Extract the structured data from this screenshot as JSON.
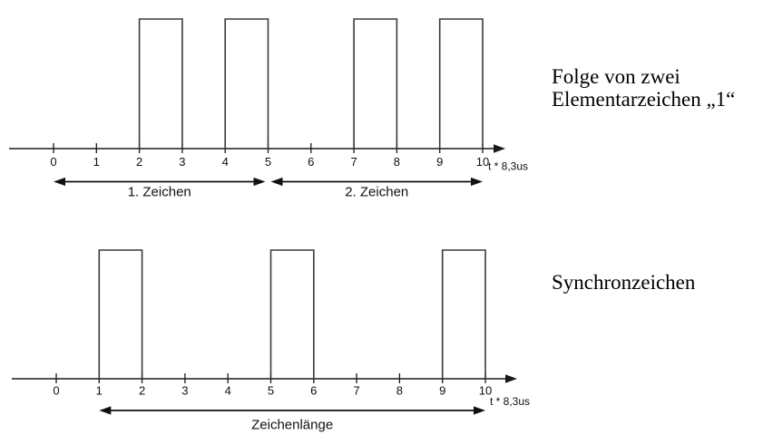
{
  "colors": {
    "background": "#ffffff",
    "axis_line": "#1a1a1a",
    "pulse_line": "#3a3a3a",
    "arrow_line": "#111111",
    "text": "#000000"
  },
  "diagrams": [
    {
      "name": "folge-von-zwei-elementarzeichen",
      "caption": [
        "Folge von zwei",
        "Elementarzeichen „1“"
      ],
      "axis_unit_label": "t * 8,3us",
      "tick_labels": [
        "0",
        "1",
        "2",
        "3",
        "4",
        "5",
        "6",
        "7",
        "8",
        "9",
        "10"
      ],
      "pulses": [
        {
          "from": 2,
          "to": 3
        },
        {
          "from": 4,
          "to": 5
        },
        {
          "from": 7,
          "to": 8
        },
        {
          "from": 9,
          "to": 10
        }
      ],
      "spans": [
        {
          "from": 0,
          "to": 5,
          "label": "1. Zeichen"
        },
        {
          "from": 5,
          "to": 10,
          "label": "2. Zeichen"
        }
      ]
    },
    {
      "name": "synchronzeichen",
      "caption": [
        "Synchronzeichen"
      ],
      "axis_unit_label": "t * 8,3us",
      "tick_labels": [
        "0",
        "1",
        "2",
        "3",
        "4",
        "5",
        "6",
        "7",
        "8",
        "9",
        "10"
      ],
      "pulses": [
        {
          "from": 1,
          "to": 2
        },
        {
          "from": 5,
          "to": 6
        },
        {
          "from": 9,
          "to": 10
        }
      ],
      "spans": [
        {
          "from": 1,
          "to": 10,
          "label": "Zeichenlänge"
        }
      ]
    }
  ]
}
